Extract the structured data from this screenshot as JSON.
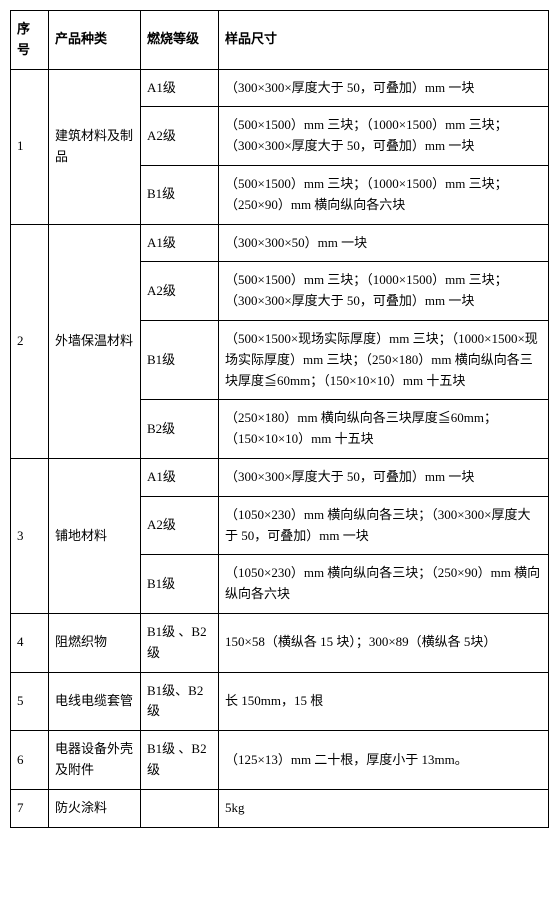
{
  "headers": {
    "seq": "序号",
    "type": "产品种类",
    "grade": "燃烧等级",
    "size": "样品尺寸"
  },
  "rows": {
    "r1": {
      "seq": "1",
      "type": "建筑材料及制品",
      "a1_grade": "A1级",
      "a1_size": "（300×300×厚度大于 50，可叠加）mm 一块",
      "a2_grade": "A2级",
      "a2_size": "（500×1500）mm 三块；（1000×1500）mm 三块；\n（300×300×厚度大于 50，可叠加）mm 一块",
      "b1_grade": "B1级",
      "b1_size": "（500×1500）mm 三块；（1000×1500）mm 三块；（250×90）mm 横向纵向各六块"
    },
    "r2": {
      "seq": "2",
      "type": "外墙保温材料",
      "a1_grade": "A1级",
      "a1_size": "（300×300×50）mm 一块",
      "a2_grade": "A2级",
      "a2_size": "（500×1500）mm 三块；（1000×1500）mm 三块；\n（300×300×厚度大于 50，可叠加）mm 一块",
      "b1_grade": "B1级",
      "b1_size": "（500×1500×现场实际厚度）mm 三块；（1000×1500×现场实际厚度）mm 三块；（250×180）mm 横向纵向各三块厚度≦60mm；（150×10×10）mm 十五块",
      "b2_grade": "B2级",
      "b2_size": "（250×180）mm 横向纵向各三块厚度≦60mm；（150×10×10）mm 十五块"
    },
    "r3": {
      "seq": "3",
      "type": "铺地材料",
      "a1_grade": "A1级",
      "a1_size": "（300×300×厚度大于 50，可叠加）mm 一块",
      "a2_grade": "A2级",
      "a2_size": "（1050×230）mm 横向纵向各三块；（300×300×厚度大于 50，可叠加）mm 一块",
      "b1_grade": "B1级",
      "b1_size": "（1050×230）mm 横向纵向各三块；（250×90）mm 横向纵向各六块"
    },
    "r4": {
      "seq": "4",
      "type": "阻燃织物",
      "grade": "B1级 、B2级",
      "size": "150×58（横纵各 15 块）；300×89（横纵各 5块）"
    },
    "r5": {
      "seq": "5",
      "type": "电线电缆套管",
      "grade": "B1级、B2级",
      "size": "长 150mm，15 根"
    },
    "r6": {
      "seq": "6",
      "type": "电器设备外壳及附件",
      "grade": "B1级 、B2级",
      "size": "（125×13）mm 二十根，厚度小于 13mm。"
    },
    "r7": {
      "seq": "7",
      "type": "防火涂料",
      "grade": "",
      "size": "5kg"
    }
  }
}
